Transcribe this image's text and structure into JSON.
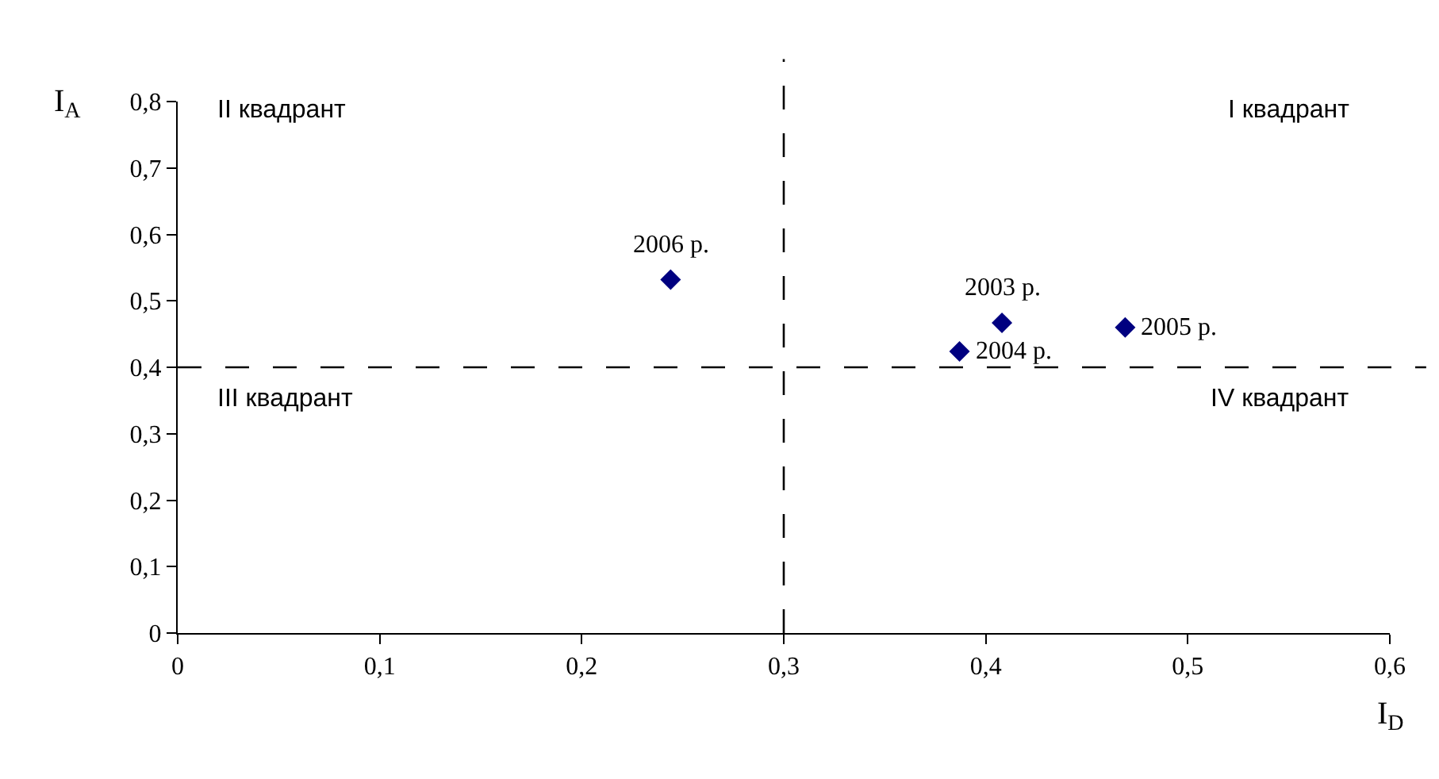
{
  "chart_data": {
    "type": "scatter",
    "xlabel": "I$_{D}$",
    "ylabel": "I$_{A}$",
    "x": [
      0.408,
      0.387,
      0.469,
      0.244
    ],
    "series": [
      {
        "color": "#000080",
        "values": [
          0.467,
          0.424,
          0.46,
          0.532
        ]
      }
    ],
    "marker": "diamond",
    "xlim": [
      0,
      0.6
    ],
    "xticks": [
      {
        "value": 0,
        "label": "0"
      },
      {
        "value": 0.1,
        "label": "0,1"
      },
      {
        "value": 0.2,
        "label": "0,2"
      },
      {
        "value": 0.3,
        "label": "0,3"
      },
      {
        "value": 0.4,
        "label": "0,4"
      },
      {
        "value": 0.5,
        "label": "0,5"
      },
      {
        "value": 0.6,
        "label": "0,6"
      }
    ],
    "ylim": [
      0,
      0.8
    ],
    "yticks": [
      {
        "value": 0,
        "label": "0"
      },
      {
        "value": 0.1,
        "label": "0,1"
      },
      {
        "value": 0.2,
        "label": "0,2"
      },
      {
        "value": 0.3,
        "label": "0,3"
      },
      {
        "value": 0.4,
        "label": "0,4"
      },
      {
        "value": 0.5,
        "label": "0,5"
      },
      {
        "value": 0.6,
        "label": "0,6"
      },
      {
        "value": 0.7,
        "label": "0,7"
      },
      {
        "value": 0.8,
        "label": "0,8"
      }
    ],
    "ref_lines": [
      {
        "axis": "x",
        "value": 0.3,
        "color": "#000000",
        "line_style": "dashed"
      },
      {
        "axis": "y",
        "value": 0.4,
        "color": "#000000",
        "line_style": "dashed"
      }
    ],
    "annotations": [
      "II квадрант",
      "I квадрант",
      "III квадрант",
      "IV квадрант",
      {
        "text": "2003 р.",
        "x": 0.408,
        "y": 0.467
      },
      {
        "text": "2004 р.",
        "x": 0.387,
        "y": 0.424
      },
      {
        "text": "2005 р.",
        "x": 0.469,
        "y": 0.46
      },
      {
        "text": "2006 р.",
        "x": 0.244,
        "y": 0.532
      }
    ]
  }
}
